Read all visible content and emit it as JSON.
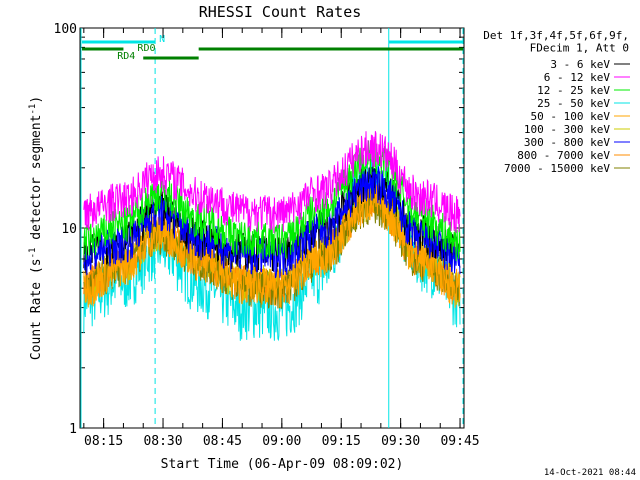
{
  "chart_data": {
    "type": "line",
    "title": "RHESSI Count Rates",
    "xlabel": "Start Time (06-Apr-09 08:09:02)",
    "ylabel": "Count Rate (s",
    "ylabel_exponent": "-1",
    "ylabel_suffix": " detector segment",
    "ylabel_exponent2": "-1",
    "ylabel_close": ")",
    "y_scale": "log",
    "xlim": [
      "08:09:02",
      "09:46:00"
    ],
    "ylim": [
      1,
      100
    ],
    "x_ticks": [
      "08:15",
      "08:30",
      "08:45",
      "09:00",
      "09:15",
      "09:30",
      "09:45"
    ],
    "y_ticks": [
      {
        "value": 100,
        "label": "100"
      },
      {
        "value": 10,
        "label": "10"
      },
      {
        "value": 1,
        "label": "1"
      }
    ],
    "grid": false,
    "legend_header": [
      "Det 1f,3f,4f,5f,6f,9f,",
      "FDecim 1, Att 0"
    ],
    "legend_position": "right",
    "series": [
      {
        "name": "3 - 6 keV",
        "color": "#000000",
        "x": [
          "08:10",
          "08:20",
          "08:29",
          "08:40",
          "08:50",
          "09:00",
          "09:10",
          "09:23",
          "09:35",
          "09:45"
        ],
        "y": [
          7.6,
          8.8,
          12.5,
          9.0,
          7.8,
          7.5,
          10.0,
          17.5,
          9.5,
          7.5
        ]
      },
      {
        "name": "6 - 12 keV",
        "color": "#ff00ff",
        "x": [
          "08:10",
          "08:20",
          "08:29",
          "08:40",
          "08:50",
          "09:00",
          "09:10",
          "09:23",
          "09:35",
          "09:45"
        ],
        "y": [
          12.2,
          14.0,
          19.0,
          14.5,
          12.3,
          12.0,
          15.5,
          25.5,
          14.5,
          11.8
        ]
      },
      {
        "name": "12 - 25 keV",
        "color": "#00ee00",
        "x": [
          "08:10",
          "08:20",
          "08:29",
          "08:40",
          "08:50",
          "09:00",
          "09:10",
          "09:23",
          "09:35",
          "09:45"
        ],
        "y": [
          8.6,
          10.5,
          15.0,
          11.0,
          9.0,
          8.8,
          12.5,
          23.0,
          11.5,
          8.6
        ]
      },
      {
        "name": "25 - 50 keV",
        "color": "#00e5e5",
        "x": [
          "08:10",
          "08:20",
          "08:29",
          "08:40",
          "08:50",
          "09:00",
          "09:10",
          "09:23",
          "09:35",
          "09:45"
        ],
        "y": [
          4.4,
          5.5,
          8.0,
          5.2,
          4.0,
          3.9,
          6.0,
          18.0,
          7.0,
          4.6
        ]
      },
      {
        "name": "50 - 100 keV",
        "color": "#ffa500",
        "x": [
          "08:10",
          "08:20",
          "08:29",
          "08:40",
          "08:50",
          "09:00",
          "09:10",
          "09:23",
          "09:35",
          "09:45"
        ],
        "y": [
          5.0,
          6.5,
          9.5,
          6.8,
          5.3,
          5.1,
          7.2,
          13.5,
          7.0,
          5.0
        ]
      },
      {
        "name": "100 - 300 keV",
        "color": "#cccc00",
        "x": [
          "08:10",
          "08:20",
          "08:29",
          "08:40",
          "08:50",
          "09:00",
          "09:10",
          "09:23",
          "09:35",
          "09:45"
        ],
        "y": [
          5.2,
          6.8,
          9.8,
          7.0,
          5.5,
          5.3,
          7.5,
          14.0,
          7.2,
          5.2
        ]
      },
      {
        "name": "300 - 800 keV",
        "color": "#0000ff",
        "x": [
          "08:10",
          "08:20",
          "08:29",
          "08:40",
          "08:50",
          "09:00",
          "09:10",
          "09:23",
          "09:35",
          "09:45"
        ],
        "y": [
          7.3,
          8.5,
          12.0,
          8.8,
          7.4,
          7.2,
          9.8,
          17.0,
          9.0,
          7.0
        ]
      },
      {
        "name": "800 - 7000 keV",
        "color": "#ff8c00",
        "x": [
          "08:10",
          "08:20",
          "08:29",
          "08:40",
          "08:50",
          "09:00",
          "09:10",
          "09:23",
          "09:35",
          "09:45"
        ],
        "y": [
          5.3,
          6.6,
          9.6,
          6.9,
          5.4,
          5.2,
          7.4,
          13.8,
          7.1,
          5.1
        ]
      },
      {
        "name": "7000 - 15000 keV",
        "color": "#808000",
        "x": [
          "08:10",
          "08:20",
          "08:29",
          "08:40",
          "08:50",
          "09:00",
          "09:10",
          "09:23",
          "09:35",
          "09:45"
        ],
        "y": [
          5.1,
          6.4,
          9.4,
          6.7,
          5.2,
          5.0,
          7.1,
          13.2,
          6.9,
          4.9
        ]
      }
    ],
    "flag_bars": [
      {
        "label": "N",
        "color": "#00e5e5",
        "segments": [
          [
            "08:09",
            "08:28"
          ],
          [
            "09:27",
            "09:46"
          ]
        ]
      },
      {
        "label": "RD0",
        "color": "#008000",
        "segments": [
          [
            "08:09",
            "08:20"
          ],
          [
            "08:39",
            "09:46"
          ]
        ]
      },
      {
        "label": "RD4",
        "color": "#008000",
        "segments": [
          [
            "08:25",
            "08:39"
          ]
        ]
      }
    ],
    "vertical_lines": [
      {
        "x": "08:09",
        "color": "#00e5e5",
        "style": "solid"
      },
      {
        "x": "08:28",
        "color": "#00e5e5",
        "style": "dashed"
      },
      {
        "x": "09:27",
        "color": "#00e5e5",
        "style": "solid"
      },
      {
        "x": "09:46",
        "color": "#00e5e5",
        "style": "dashed"
      }
    ],
    "timestamp": "14-Oct-2021 08:44"
  }
}
